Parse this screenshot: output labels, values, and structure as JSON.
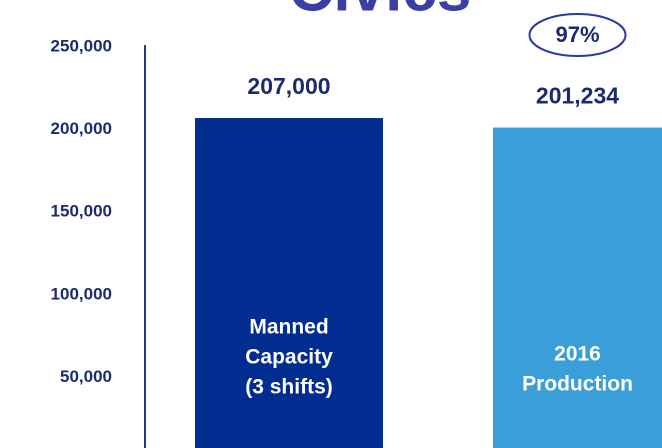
{
  "chart_data": {
    "type": "bar",
    "title": "Civics",
    "categories": [
      [
        "Manned",
        "Capacity",
        "(3 shifts)"
      ],
      [
        "2016",
        "Production"
      ]
    ],
    "values": [
      207000,
      201234
    ],
    "value_labels": [
      "207,000",
      "201,234"
    ],
    "colors": [
      "#002d8f",
      "#3a9fd9"
    ],
    "annotation": "97%",
    "ylim": [
      0,
      250000
    ],
    "yticks": [
      {
        "value": 50000,
        "label": "50,000"
      },
      {
        "value": 100000,
        "label": "100,000"
      },
      {
        "value": 150000,
        "label": "150,000"
      },
      {
        "value": 200000,
        "label": "200,000"
      },
      {
        "value": 250000,
        "label": "250,000"
      }
    ],
    "grid": false
  }
}
